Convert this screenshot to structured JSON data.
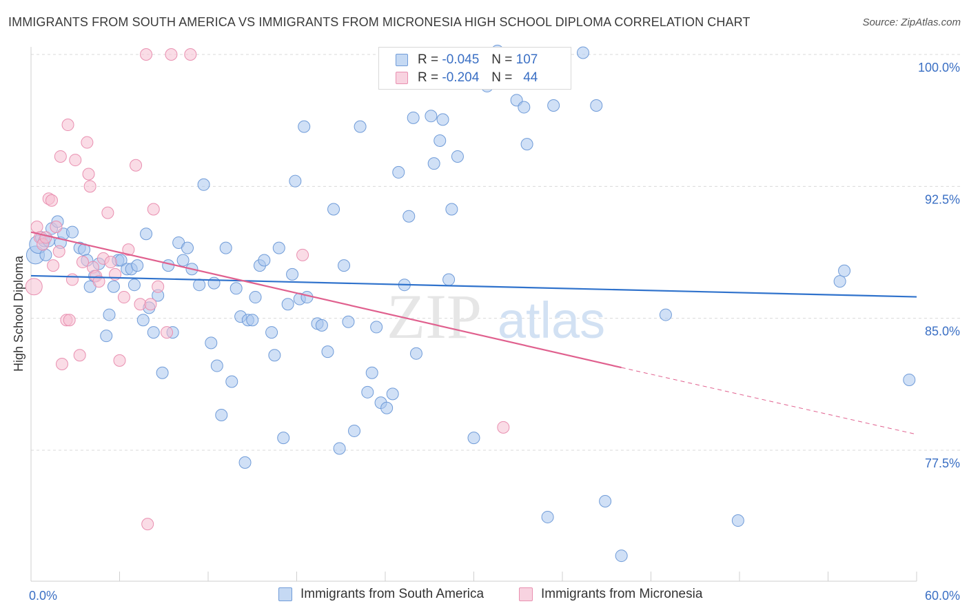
{
  "header": {
    "title": "IMMIGRANTS FROM SOUTH AMERICA VS IMMIGRANTS FROM MICRONESIA HIGH SCHOOL DIPLOMA CORRELATION CHART",
    "source": "Source: ZipAtlas.com"
  },
  "legend": {
    "rows": [
      {
        "r_label": "R =",
        "r_value": "-0.045",
        "n_label": "N =",
        "n_value": "107"
      },
      {
        "r_label": "R =",
        "r_value": "-0.204",
        "n_label": "N =",
        "n_value": "44"
      }
    ]
  },
  "bottom_legend": {
    "series1": "Immigrants from South America",
    "series2": "Immigrants from Micronesia"
  },
  "watermark": {
    "zip": "ZIP",
    "atlas": "atlas"
  },
  "colors": {
    "blue_fill": "#a9c7ee",
    "blue_stroke": "#6f9bd8",
    "blue_line": "#2f72cc",
    "pink_fill": "#f5bfd1",
    "pink_stroke": "#e98fb0",
    "pink_line": "#e0608e",
    "axis_label": "#3a6fc4",
    "grid": "#d9d9d9"
  },
  "chart_data": {
    "type": "scatter",
    "title": "IMMIGRANTS FROM SOUTH AMERICA VS IMMIGRANTS FROM MICRONESIA HIGH SCHOOL DIPLOMA CORRELATION CHART",
    "xlabel": "",
    "ylabel": "High School Diploma",
    "xlim": [
      0,
      60
    ],
    "ylim": [
      70.5,
      101.3
    ],
    "x_tick_labels": [
      {
        "value": 0,
        "label": "0.0%"
      },
      {
        "value": 60,
        "label": "60.0%"
      }
    ],
    "x_minor_ticks": [
      0,
      6,
      12,
      18,
      24,
      30,
      36,
      42,
      48,
      54,
      60
    ],
    "y_ticks": [
      {
        "value": 100,
        "label": "100.0%"
      },
      {
        "value": 92.5,
        "label": "92.5%"
      },
      {
        "value": 85,
        "label": "85.0%"
      },
      {
        "value": 77.5,
        "label": "77.5%"
      }
    ],
    "grid": true,
    "legend_position": "top-center",
    "series": [
      {
        "name": "Immigrants from South America",
        "color": "#6f9bd8",
        "R": -0.045,
        "N": 107,
        "trend": {
          "x": [
            0,
            60
          ],
          "y": [
            87.42,
            86.22
          ]
        },
        "points": [
          [
            0.3,
            88.6
          ],
          [
            0.5,
            89.2
          ],
          [
            0.7,
            89.6
          ],
          [
            0.9,
            89.4
          ],
          [
            1.0,
            88.6
          ],
          [
            1.2,
            89.4
          ],
          [
            1.4,
            90.1
          ],
          [
            1.8,
            90.5
          ],
          [
            2.0,
            89.3
          ],
          [
            2.2,
            89.8
          ],
          [
            2.8,
            89.9
          ],
          [
            3.3,
            89.0
          ],
          [
            3.6,
            88.9
          ],
          [
            3.8,
            88.3
          ],
          [
            4.0,
            86.8
          ],
          [
            4.3,
            87.4
          ],
          [
            4.6,
            88.1
          ],
          [
            5.1,
            84.0
          ],
          [
            5.3,
            85.2
          ],
          [
            5.6,
            86.8
          ],
          [
            5.9,
            88.3
          ],
          [
            6.1,
            88.3
          ],
          [
            6.5,
            87.8
          ],
          [
            6.8,
            87.8
          ],
          [
            7.0,
            86.9
          ],
          [
            7.2,
            88.0
          ],
          [
            7.6,
            84.9
          ],
          [
            7.8,
            89.8
          ],
          [
            8.0,
            85.6
          ],
          [
            8.3,
            84.2
          ],
          [
            8.6,
            86.3
          ],
          [
            8.9,
            81.9
          ],
          [
            9.3,
            88.0
          ],
          [
            9.6,
            84.2
          ],
          [
            10.0,
            89.3
          ],
          [
            10.3,
            88.3
          ],
          [
            10.6,
            89.0
          ],
          [
            10.9,
            87.8
          ],
          [
            11.4,
            86.9
          ],
          [
            11.7,
            92.6
          ],
          [
            12.2,
            83.6
          ],
          [
            12.4,
            87.0
          ],
          [
            12.6,
            82.3
          ],
          [
            12.9,
            79.5
          ],
          [
            13.2,
            89.0
          ],
          [
            13.6,
            81.4
          ],
          [
            13.9,
            86.7
          ],
          [
            14.2,
            85.1
          ],
          [
            14.5,
            76.8
          ],
          [
            14.7,
            84.9
          ],
          [
            15.0,
            84.9
          ],
          [
            15.2,
            86.2
          ],
          [
            15.5,
            88.0
          ],
          [
            15.8,
            88.3
          ],
          [
            16.3,
            84.2
          ],
          [
            16.5,
            82.9
          ],
          [
            16.8,
            89.0
          ],
          [
            17.1,
            78.2
          ],
          [
            17.4,
            85.8
          ],
          [
            17.7,
            87.5
          ],
          [
            17.9,
            92.8
          ],
          [
            18.2,
            86.1
          ],
          [
            18.5,
            95.9
          ],
          [
            18.7,
            86.2
          ],
          [
            19.4,
            84.7
          ],
          [
            19.7,
            84.6
          ],
          [
            20.1,
            83.1
          ],
          [
            20.5,
            91.2
          ],
          [
            20.9,
            77.6
          ],
          [
            21.2,
            88.0
          ],
          [
            21.5,
            84.8
          ],
          [
            21.9,
            78.6
          ],
          [
            22.3,
            95.9
          ],
          [
            22.8,
            80.8
          ],
          [
            23.1,
            81.9
          ],
          [
            23.4,
            84.5
          ],
          [
            23.7,
            80.2
          ],
          [
            24.1,
            79.9
          ],
          [
            24.5,
            80.7
          ],
          [
            24.9,
            93.3
          ],
          [
            25.3,
            86.9
          ],
          [
            25.6,
            90.8
          ],
          [
            25.9,
            96.4
          ],
          [
            26.1,
            83.0
          ],
          [
            27.1,
            96.5
          ],
          [
            27.3,
            93.8
          ],
          [
            27.7,
            95.1
          ],
          [
            27.9,
            96.3
          ],
          [
            28.3,
            87.2
          ],
          [
            28.5,
            91.2
          ],
          [
            28.9,
            94.2
          ],
          [
            29.5,
            98.4
          ],
          [
            30.9,
            98.2
          ],
          [
            30.0,
            78.2
          ],
          [
            31.6,
            100.2
          ],
          [
            31.9,
            100.0
          ],
          [
            32.9,
            97.4
          ],
          [
            33.4,
            97.0
          ],
          [
            33.6,
            94.9
          ],
          [
            35.0,
            73.7
          ],
          [
            35.4,
            97.1
          ],
          [
            37.4,
            100.1
          ],
          [
            38.3,
            97.1
          ],
          [
            38.9,
            74.6
          ],
          [
            40.0,
            71.5
          ],
          [
            43.0,
            85.2
          ],
          [
            47.9,
            73.5
          ],
          [
            54.8,
            87.1
          ],
          [
            55.1,
            87.7
          ],
          [
            59.5,
            81.5
          ]
        ]
      },
      {
        "name": "Immigrants from Micronesia",
        "color": "#e98fb0",
        "R": -0.204,
        "N": 44,
        "trend": {
          "x": [
            0,
            40
          ],
          "y": [
            89.9,
            82.2
          ]
        },
        "trend_dashed": {
          "x": [
            40,
            60
          ],
          "y": [
            82.2,
            78.4
          ]
        },
        "points": [
          [
            0.2,
            86.8
          ],
          [
            0.4,
            90.2
          ],
          [
            0.6,
            89.6
          ],
          [
            0.8,
            89.2
          ],
          [
            1.0,
            89.6
          ],
          [
            1.2,
            91.8
          ],
          [
            1.4,
            91.7
          ],
          [
            1.5,
            88.0
          ],
          [
            1.7,
            90.2
          ],
          [
            1.9,
            88.8
          ],
          [
            2.0,
            94.2
          ],
          [
            2.1,
            82.4
          ],
          [
            2.4,
            84.9
          ],
          [
            2.5,
            96.0
          ],
          [
            2.6,
            84.9
          ],
          [
            2.8,
            87.2
          ],
          [
            3.0,
            94.0
          ],
          [
            3.3,
            82.9
          ],
          [
            3.5,
            88.2
          ],
          [
            3.8,
            95.0
          ],
          [
            3.9,
            93.2
          ],
          [
            4.0,
            92.5
          ],
          [
            4.2,
            87.9
          ],
          [
            4.4,
            87.4
          ],
          [
            4.6,
            87.1
          ],
          [
            4.9,
            88.4
          ],
          [
            5.2,
            91.0
          ],
          [
            5.4,
            88.2
          ],
          [
            5.7,
            87.5
          ],
          [
            6.0,
            82.6
          ],
          [
            6.3,
            86.2
          ],
          [
            6.6,
            88.9
          ],
          [
            7.1,
            93.7
          ],
          [
            7.4,
            85.8
          ],
          [
            7.8,
            100.0
          ],
          [
            7.9,
            73.3
          ],
          [
            8.1,
            85.8
          ],
          [
            8.3,
            91.2
          ],
          [
            8.6,
            86.8
          ],
          [
            9.2,
            84.2
          ],
          [
            9.5,
            100.0
          ],
          [
            10.8,
            100.0
          ],
          [
            18.4,
            88.6
          ],
          [
            32.0,
            78.8
          ]
        ]
      }
    ]
  }
}
